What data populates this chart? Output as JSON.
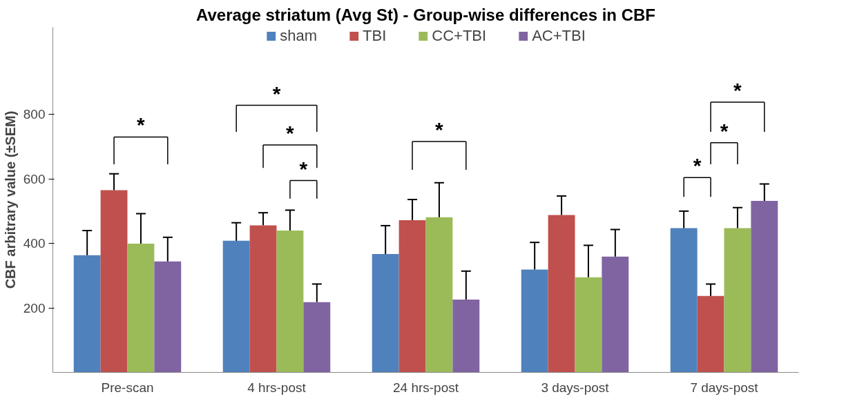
{
  "chart_data": {
    "type": "bar",
    "title": "Average striatum (Avg St) - Group-wise differences in CBF",
    "ylabel": "CBF arbitrary value (±SEM)",
    "categories": [
      "Pre-scan",
      "4 hrs-post",
      "24 hrs-post",
      "3 days-post",
      "7 days-post"
    ],
    "series": [
      {
        "name": "sham",
        "color": "#4f81bd",
        "values": [
          363,
          408,
          367,
          319,
          447
        ],
        "errors": [
          [
            363,
            440
          ],
          [
            408,
            464
          ],
          [
            367,
            455
          ],
          [
            319,
            403
          ],
          [
            447,
            500
          ]
        ]
      },
      {
        "name": "TBI",
        "color": "#c0504d",
        "values": [
          565,
          456,
          472,
          488,
          237
        ],
        "errors": [
          [
            565,
            616
          ],
          [
            456,
            495
          ],
          [
            472,
            536
          ],
          [
            488,
            547
          ],
          [
            237,
            274
          ]
        ]
      },
      {
        "name": "CC+TBI",
        "color": "#9bbb59",
        "values": [
          399,
          440,
          481,
          295,
          447
        ],
        "errors": [
          [
            399,
            492
          ],
          [
            440,
            503
          ],
          [
            481,
            588
          ],
          [
            295,
            394
          ],
          [
            447,
            511
          ]
        ]
      },
      {
        "name": "AC+TBI",
        "color": "#8064a2",
        "values": [
          344,
          218,
          226,
          359,
          532
        ],
        "errors": [
          [
            344,
            419
          ],
          [
            218,
            274
          ],
          [
            226,
            314
          ],
          [
            359,
            443
          ],
          [
            532,
            584
          ]
        ]
      }
    ],
    "ylim": [
      0,
      1070
    ],
    "yticks": [
      200,
      400,
      600,
      800
    ],
    "grid": false,
    "legend": "top",
    "annotations": [
      "*",
      "*",
      "*",
      "*",
      "*",
      "*",
      "*",
      "*"
    ]
  }
}
